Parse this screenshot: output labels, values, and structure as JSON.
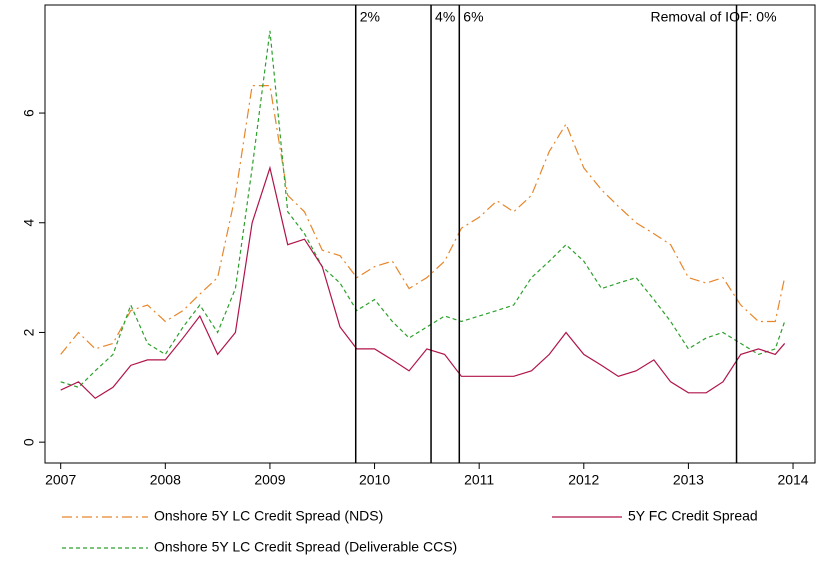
{
  "chart_data": {
    "type": "line",
    "x": [
      2007,
      2007.17,
      2007.33,
      2007.5,
      2007.67,
      2007.83,
      2008,
      2008.17,
      2008.33,
      2008.5,
      2008.67,
      2008.83,
      2009,
      2009.17,
      2009.33,
      2009.5,
      2009.67,
      2009.83,
      2010,
      2010.17,
      2010.33,
      2010.5,
      2010.67,
      2010.83,
      2011,
      2011.17,
      2011.33,
      2011.5,
      2011.67,
      2011.83,
      2012,
      2012.17,
      2012.33,
      2012.5,
      2012.67,
      2012.83,
      2013,
      2013.17,
      2013.33,
      2013.5,
      2013.67,
      2013.83,
      2013.92
    ],
    "series": [
      {
        "name": "Onshore 5Y LC Credit Spread (NDS)",
        "color": "#e8862a",
        "style": "dashdot",
        "values": [
          1.6,
          2.0,
          1.7,
          1.8,
          2.4,
          2.5,
          2.2,
          2.4,
          2.7,
          3.0,
          4.5,
          6.5,
          6.5,
          4.5,
          4.2,
          3.5,
          3.4,
          3.0,
          3.2,
          3.3,
          2.8,
          3.0,
          3.3,
          3.9,
          4.1,
          4.4,
          4.2,
          4.5,
          5.3,
          5.8,
          5.0,
          4.6,
          4.3,
          4.0,
          3.8,
          3.6,
          3.0,
          2.9,
          3.0,
          2.5,
          2.2,
          2.2,
          3.0
        ]
      },
      {
        "name": "Onshore 5Y LC Credit Spread (Deliverable CCS)",
        "color": "#2ca02c",
        "style": "dash",
        "values": [
          1.1,
          1.0,
          1.3,
          1.6,
          2.5,
          1.8,
          1.6,
          2.1,
          2.5,
          2.0,
          2.8,
          5.0,
          7.5,
          4.2,
          3.8,
          3.2,
          2.9,
          2.4,
          2.6,
          2.2,
          1.9,
          2.1,
          2.3,
          2.2,
          2.3,
          2.4,
          2.5,
          3.0,
          3.3,
          3.6,
          3.3,
          2.8,
          2.9,
          3.0,
          2.6,
          2.2,
          1.7,
          1.9,
          2.0,
          1.8,
          1.6,
          1.7,
          2.2
        ]
      },
      {
        "name": "5Y FC Credit Spread",
        "color": "#b0144a",
        "style": "solid",
        "values": [
          0.95,
          1.1,
          0.8,
          1.0,
          1.4,
          1.5,
          1.5,
          1.9,
          2.3,
          1.6,
          2.0,
          4.0,
          5.0,
          3.6,
          3.7,
          3.2,
          2.1,
          1.7,
          1.7,
          1.5,
          1.3,
          1.7,
          1.6,
          1.2,
          1.2,
          1.2,
          1.2,
          1.3,
          1.6,
          2.0,
          1.6,
          1.4,
          1.2,
          1.3,
          1.5,
          1.1,
          0.9,
          0.9,
          1.1,
          1.6,
          1.7,
          1.6,
          1.8
        ]
      }
    ],
    "events": [
      {
        "x": 2009.82,
        "label": "2%"
      },
      {
        "x": 2010.54,
        "label": "4%"
      },
      {
        "x": 2010.81,
        "label": "6%"
      },
      {
        "x": 2013.46,
        "label": "Removal of IOF: 0%"
      }
    ],
    "xlim": [
      2006.85,
      2014.21
    ],
    "xticks": [
      2007,
      2008,
      2009,
      2010,
      2011,
      2012,
      2013,
      2014
    ],
    "ylim": [
      -0.38,
      7.97
    ],
    "yticks": [
      0,
      2,
      4,
      6
    ]
  }
}
